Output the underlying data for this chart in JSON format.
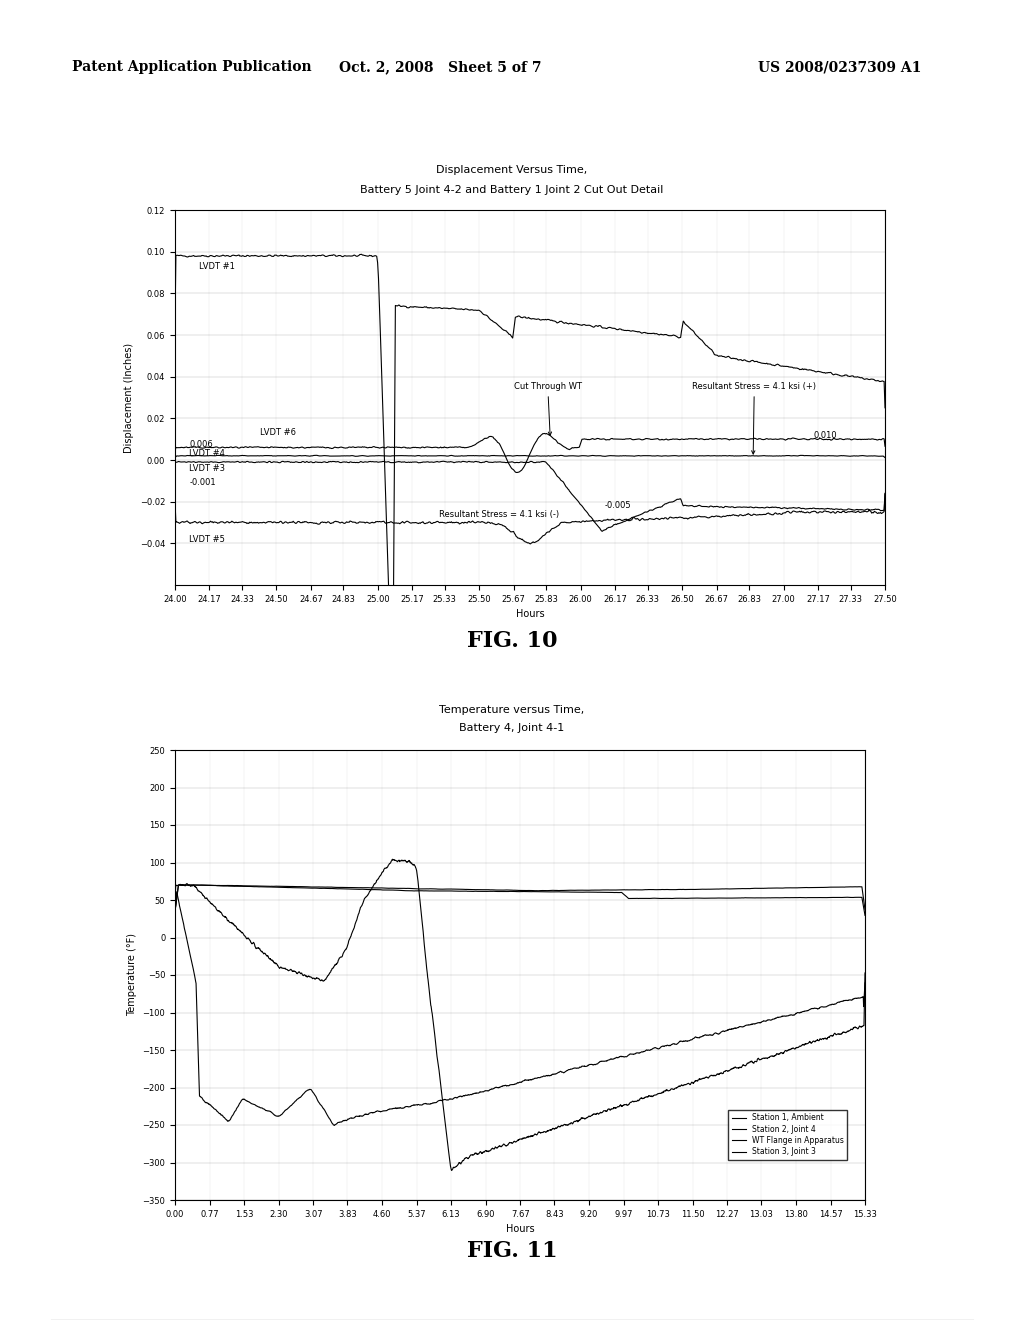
{
  "page_title_left": "Patent Application Publication",
  "page_title_center": "Oct. 2, 2008   Sheet 5 of 7",
  "page_title_right": "US 2008/0237309 A1",
  "fig10": {
    "title_line1": "Displacement Versus Time,",
    "title_line2": "Battery 5 Joint 4-2 and Battery 1 Joint 2 Cut Out Detail",
    "xlabel": "Hours",
    "ylabel": "Displacement (Inches)",
    "xlim": [
      24.0,
      27.5
    ],
    "ylim": [
      -0.06,
      0.12
    ],
    "yticks": [
      -0.04,
      -0.02,
      0,
      0.02,
      0.04,
      0.06,
      0.08,
      0.1,
      0.12
    ],
    "xtick_labels": [
      "24.00",
      "24.17",
      "24.33",
      "24.50",
      "24.67",
      "24.83",
      "25.00",
      "25.17",
      "25.33",
      "25.50",
      "25.67",
      "25.83",
      "26.00",
      "26.17",
      "26.33",
      "26.50",
      "26.67",
      "26.83",
      "27.00",
      "27.17",
      "27.33",
      "27.50"
    ],
    "xtick_vals": [
      24.0,
      24.17,
      24.33,
      24.5,
      24.67,
      24.83,
      25.0,
      25.17,
      25.33,
      25.5,
      25.67,
      25.83,
      26.0,
      26.17,
      26.33,
      26.5,
      26.67,
      26.83,
      27.0,
      27.17,
      27.33,
      27.5
    ],
    "fig_label": "FIG. 10"
  },
  "fig11": {
    "title_line1": "Temperature versus Time,",
    "title_line2": "Battery 4, Joint 4-1",
    "xlabel": "Hours",
    "ylabel": "Temperature (°F)",
    "xlim": [
      0.0,
      15.33
    ],
    "ylim": [
      -350,
      250
    ],
    "yticks": [
      -350,
      -300,
      -250,
      -200,
      -150,
      -100,
      -50,
      0,
      50,
      100,
      150,
      200,
      250
    ],
    "xtick_labels": [
      "0.00",
      "0.77",
      "1.53",
      "2.30",
      "3.07",
      "3.83",
      "4.60",
      "5.37",
      "6.13",
      "6.90",
      "7.67",
      "8.43",
      "9.20",
      "9.97",
      "10.73",
      "11.50",
      "12.27",
      "13.03",
      "13.80",
      "14.57",
      "15.33"
    ],
    "xtick_vals": [
      0.0,
      0.77,
      1.53,
      2.3,
      3.07,
      3.83,
      4.6,
      5.37,
      6.13,
      6.9,
      7.67,
      8.43,
      9.2,
      9.97,
      10.73,
      11.5,
      12.27,
      13.03,
      13.8,
      14.57,
      15.33
    ],
    "fig_label": "FIG. 11",
    "legend_entries": [
      "Station 1, Ambient",
      "Station 2, Joint 4",
      "WT Flange in Apparatus",
      "Station 3, Joint 3"
    ]
  },
  "background_color": "#ffffff",
  "font_size_title": 8,
  "font_size_axis": 7,
  "font_size_tick": 6,
  "font_size_annotation": 6,
  "font_size_header": 10,
  "font_size_fig_label": 16
}
